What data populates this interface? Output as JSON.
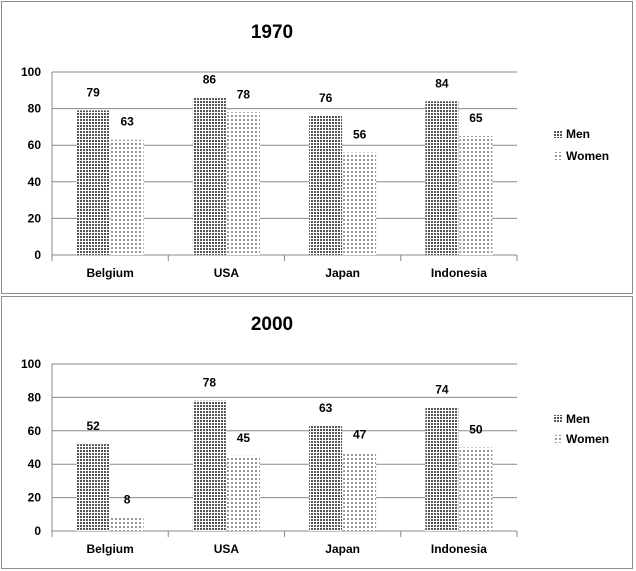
{
  "chart_data": [
    {
      "type": "bar",
      "title": "1970",
      "categories": [
        "Belgium",
        "USA",
        "Japan",
        "Indonesia"
      ],
      "series": [
        {
          "name": "Men",
          "values": [
            79,
            86,
            76,
            84
          ]
        },
        {
          "name": "Women",
          "values": [
            63,
            78,
            56,
            65
          ]
        }
      ],
      "xlabel": "",
      "ylabel": "",
      "ylim": [
        0,
        100
      ],
      "yticks": [
        0,
        20,
        40,
        60,
        80,
        100
      ],
      "grid": true,
      "legend": "right",
      "colors": {
        "men": "#555555",
        "women": "#999999"
      }
    },
    {
      "type": "bar",
      "title": "2000",
      "categories": [
        "Belgium",
        "USA",
        "Japan",
        "Indonesia"
      ],
      "series": [
        {
          "name": "Men",
          "values": [
            52,
            78,
            63,
            74
          ]
        },
        {
          "name": "Women",
          "values": [
            8,
            45,
            47,
            50
          ]
        }
      ],
      "xlabel": "",
      "ylabel": "",
      "ylim": [
        0,
        100
      ],
      "yticks": [
        0,
        20,
        40,
        60,
        80,
        100
      ],
      "grid": true,
      "legend": "right",
      "colors": {
        "men": "#555555",
        "women": "#999999"
      }
    }
  ]
}
